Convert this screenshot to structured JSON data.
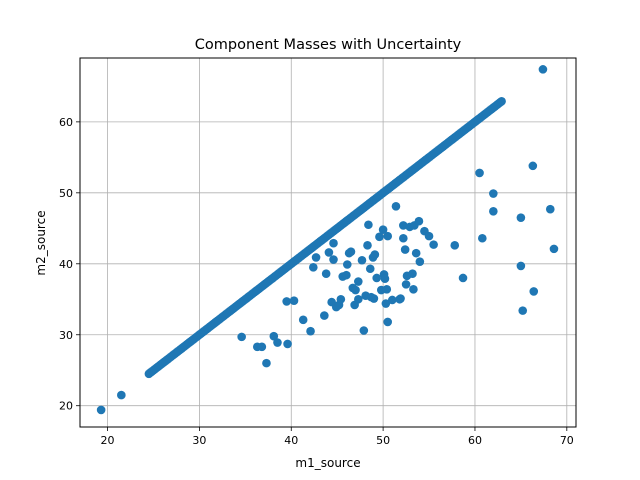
{
  "chart_data": {
    "type": "scatter",
    "title": "Component Masses with Uncertainty",
    "xlabel": "m1_source",
    "ylabel": "m2_source",
    "xlim": [
      17,
      71
    ],
    "ylim": [
      17,
      69
    ],
    "xticks": [
      20,
      30,
      40,
      50,
      60,
      70
    ],
    "yticks": [
      20,
      30,
      40,
      50,
      60
    ],
    "grid": true,
    "marker_color": "#1f77b4",
    "diagonal_band": {
      "from": 24.5,
      "to": 62.9,
      "count": 260
    },
    "points": [
      [
        19.3,
        19.4
      ],
      [
        21.5,
        21.5
      ],
      [
        67.4,
        67.4
      ],
      [
        34.6,
        29.7
      ],
      [
        36.3,
        28.3
      ],
      [
        36.8,
        28.3
      ],
      [
        37.3,
        26.0
      ],
      [
        38.1,
        29.8
      ],
      [
        38.5,
        28.9
      ],
      [
        39.5,
        34.7
      ],
      [
        39.6,
        28.7
      ],
      [
        40.3,
        34.8
      ],
      [
        41.3,
        32.1
      ],
      [
        42.1,
        30.5
      ],
      [
        42.4,
        39.5
      ],
      [
        42.7,
        40.9
      ],
      [
        43.6,
        32.7
      ],
      [
        43.8,
        38.6
      ],
      [
        44.1,
        41.6
      ],
      [
        44.4,
        34.6
      ],
      [
        44.6,
        40.6
      ],
      [
        44.6,
        42.9
      ],
      [
        44.9,
        33.9
      ],
      [
        45.2,
        34.2
      ],
      [
        45.4,
        35.0
      ],
      [
        45.6,
        38.2
      ],
      [
        46.0,
        38.4
      ],
      [
        46.1,
        39.9
      ],
      [
        46.3,
        41.5
      ],
      [
        46.5,
        41.7
      ],
      [
        46.7,
        36.6
      ],
      [
        46.9,
        34.2
      ],
      [
        47.0,
        36.3
      ],
      [
        47.3,
        37.5
      ],
      [
        47.3,
        35.0
      ],
      [
        47.7,
        40.5
      ],
      [
        47.9,
        30.6
      ],
      [
        48.1,
        35.5
      ],
      [
        48.3,
        42.6
      ],
      [
        48.4,
        45.5
      ],
      [
        48.6,
        39.3
      ],
      [
        48.7,
        35.3
      ],
      [
        48.9,
        40.9
      ],
      [
        49.0,
        35.1
      ],
      [
        49.1,
        41.3
      ],
      [
        49.3,
        38.0
      ],
      [
        49.6,
        43.8
      ],
      [
        49.8,
        36.3
      ],
      [
        50.0,
        44.8
      ],
      [
        50.1,
        38.5
      ],
      [
        50.2,
        37.9
      ],
      [
        50.3,
        34.4
      ],
      [
        50.4,
        36.4
      ],
      [
        50.5,
        43.9
      ],
      [
        50.5,
        31.8
      ],
      [
        51.0,
        34.9
      ],
      [
        51.4,
        48.1
      ],
      [
        51.8,
        35.0
      ],
      [
        51.9,
        35.1
      ],
      [
        52.2,
        45.4
      ],
      [
        52.2,
        43.6
      ],
      [
        52.4,
        42.0
      ],
      [
        52.5,
        37.1
      ],
      [
        52.6,
        38.3
      ],
      [
        52.9,
        45.2
      ],
      [
        53.2,
        38.6
      ],
      [
        53.3,
        36.4
      ],
      [
        53.4,
        45.4
      ],
      [
        53.6,
        41.5
      ],
      [
        53.9,
        46.0
      ],
      [
        54.0,
        40.3
      ],
      [
        54.5,
        44.6
      ],
      [
        55.0,
        43.9
      ],
      [
        55.5,
        42.7
      ],
      [
        57.8,
        42.6
      ],
      [
        58.7,
        38.0
      ],
      [
        60.5,
        52.8
      ],
      [
        60.8,
        43.6
      ],
      [
        62.0,
        49.9
      ],
      [
        62.0,
        47.4
      ],
      [
        65.0,
        46.5
      ],
      [
        65.0,
        39.7
      ],
      [
        65.2,
        33.4
      ],
      [
        66.3,
        53.8
      ],
      [
        66.4,
        36.1
      ],
      [
        68.2,
        47.7
      ],
      [
        68.6,
        42.1
      ]
    ]
  }
}
